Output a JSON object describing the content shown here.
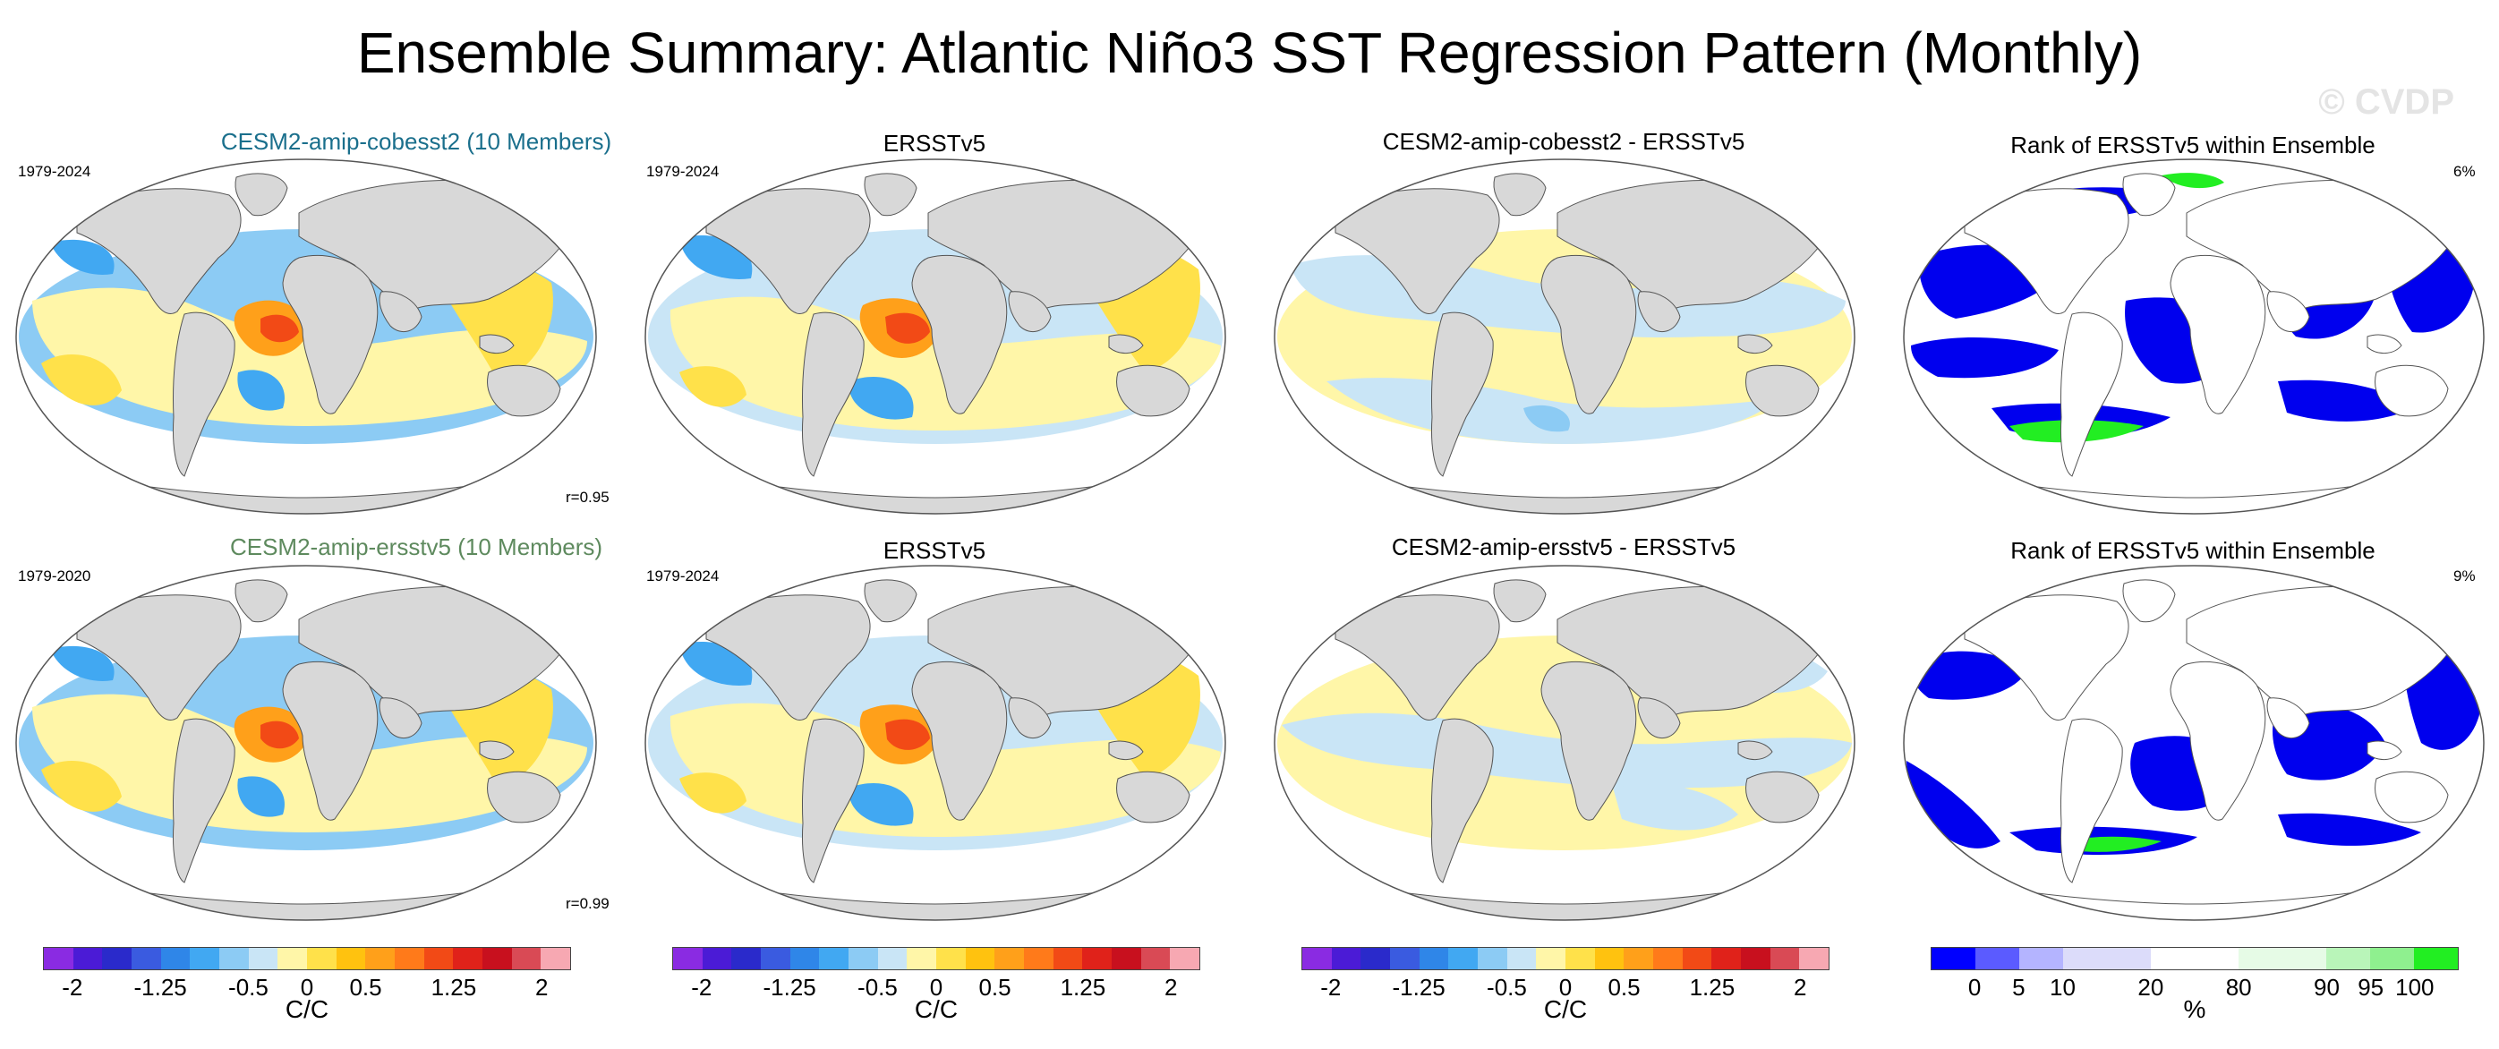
{
  "title": "Ensemble Summary: Atlantic Niño3 SST Regression Pattern (Monthly)",
  "watermark": "© CVDP",
  "colors": {
    "model_title_row1": "#1a6f8c",
    "model_title_row2": "#5e8a5e",
    "land": "#d8d8d8",
    "rank_low": "#0000ee",
    "rank_high": "#22ee22",
    "anom_scale": [
      "#8a2be2",
      "#4b1bd6",
      "#2a2acb",
      "#3a5be0",
      "#2f86e8",
      "#41a8f2",
      "#8ccbf4",
      "#c9e5f6",
      "#fff6a8",
      "#ffe14a",
      "#ffc20f",
      "#ffa01a",
      "#ff7a1a",
      "#f24a16",
      "#e0221a",
      "#c8101e",
      "#d94a55",
      "#f7a8b2"
    ],
    "rank_scale": [
      "#0000ff",
      "#5b5bff",
      "#b4b4ff",
      "#dcdcfa",
      "#dcdcfa",
      "#ffffff",
      "#ffffff",
      "#e6fbe6",
      "#e6fbe6",
      "#b9f5b9",
      "#8ff08f",
      "#22ee22"
    ]
  },
  "panels": [
    {
      "id": "r1c1",
      "title": "CESM2-amip-cobesst2 (10 Members)",
      "years": "1979-2024",
      "corner": "r=0.95",
      "type": "anom",
      "style": "model",
      "colored_title": 1
    },
    {
      "id": "r1c2",
      "title": "ERSSTv5",
      "years": "1979-2024",
      "corner": "",
      "type": "anom",
      "style": "obs",
      "colored_title": 0
    },
    {
      "id": "r1c3",
      "title": "CESM2-amip-cobesst2 - ERSSTv5",
      "years": "",
      "corner": "",
      "type": "diff",
      "style": "diff1",
      "colored_title": 0
    },
    {
      "id": "r1c4",
      "title": "Rank of ERSSTv5 within Ensemble",
      "years": "",
      "corner": "6%",
      "type": "rank",
      "style": "rank1",
      "colored_title": 0
    },
    {
      "id": "r2c1",
      "title": "CESM2-amip-ersstv5 (10 Members)",
      "years": "1979-2020",
      "corner": "r=0.99",
      "type": "anom",
      "style": "model",
      "colored_title": 2
    },
    {
      "id": "r2c2",
      "title": "ERSSTv5",
      "years": "1979-2024",
      "corner": "",
      "type": "anom",
      "style": "obs",
      "colored_title": 0
    },
    {
      "id": "r2c3",
      "title": "CESM2-amip-ersstv5 - ERSSTv5",
      "years": "",
      "corner": "",
      "type": "diff",
      "style": "diff2",
      "colored_title": 0
    },
    {
      "id": "r2c4",
      "title": "Rank of ERSSTv5 within Ensemble",
      "years": "",
      "corner": "9%",
      "type": "rank",
      "style": "rank2",
      "colored_title": 0
    }
  ],
  "colorbars": [
    {
      "type": "anom",
      "ticks": [
        "-2",
        "-1.25",
        "-0.5",
        "0",
        "0.5",
        "1.25",
        "2"
      ],
      "unit": "C/C"
    },
    {
      "type": "anom",
      "ticks": [
        "-2",
        "-1.25",
        "-0.5",
        "0",
        "0.5",
        "1.25",
        "2"
      ],
      "unit": "C/C"
    },
    {
      "type": "anom",
      "ticks": [
        "-2",
        "-1.25",
        "-0.5",
        "0",
        "0.5",
        "1.25",
        "2"
      ],
      "unit": "C/C"
    },
    {
      "type": "rank",
      "ticks": [
        "0",
        "5",
        "10",
        "20",
        "80",
        "90",
        "95",
        "100"
      ],
      "unit": "%"
    }
  ]
}
